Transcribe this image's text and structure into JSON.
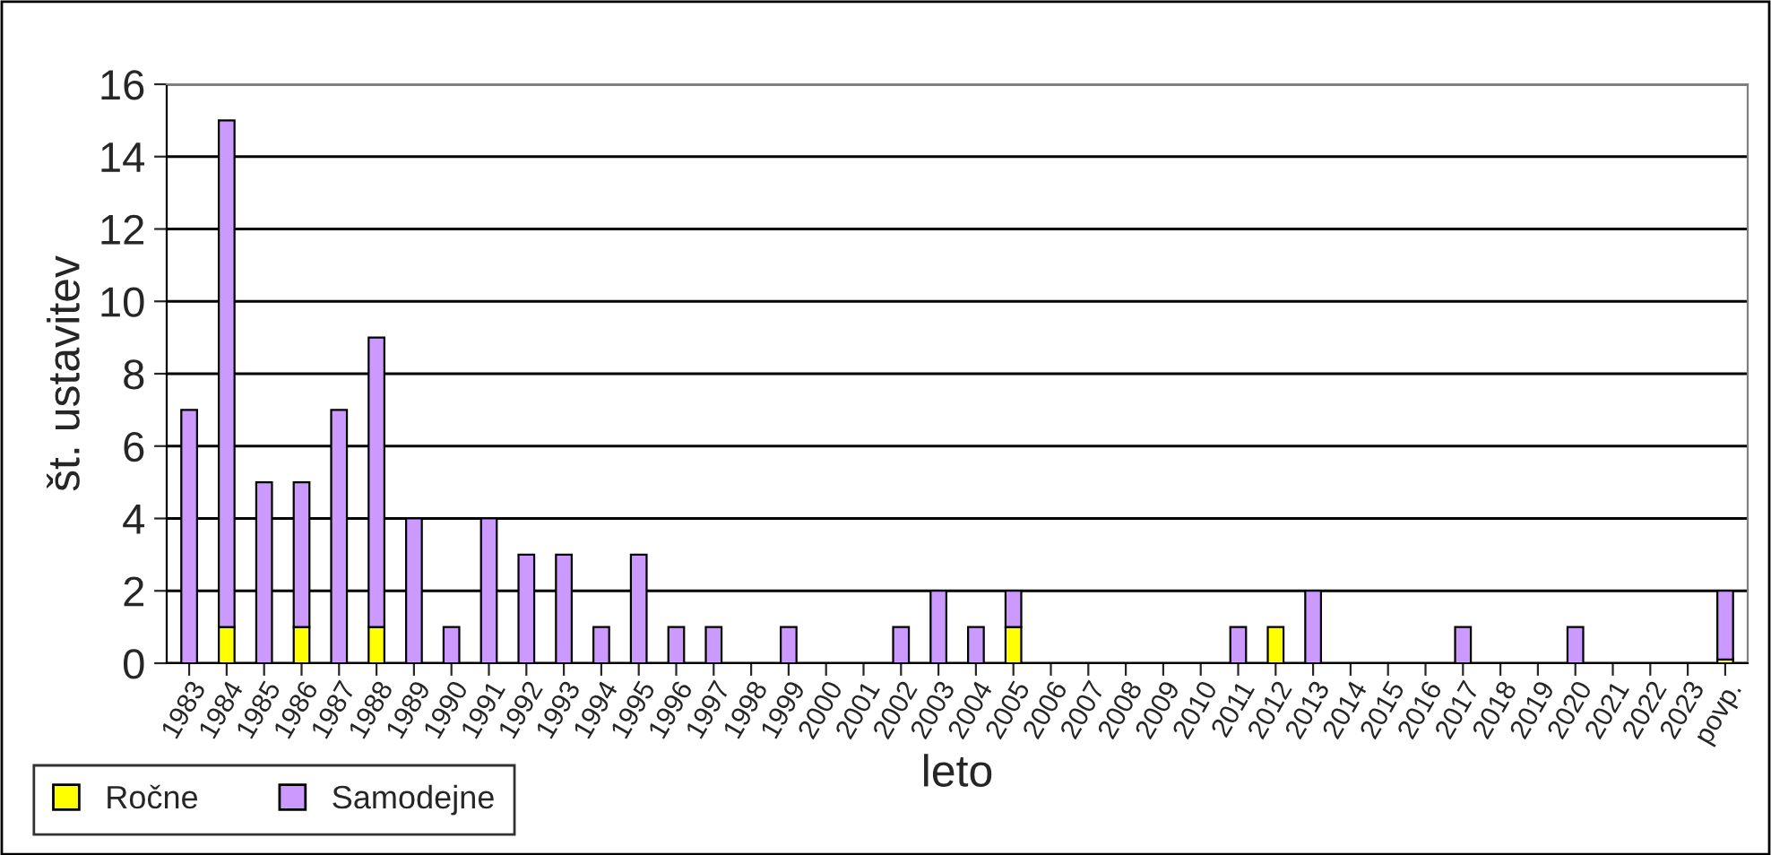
{
  "chart_data": {
    "type": "bar",
    "stacked": true,
    "xlabel": "leto",
    "ylabel": "št. ustavitev",
    "categories": [
      "1983",
      "1984",
      "1985",
      "1986",
      "1987",
      "1988",
      "1989",
      "1990",
      "1991",
      "1992",
      "1993",
      "1994",
      "1995",
      "1996",
      "1997",
      "1998",
      "1999",
      "2000",
      "2001",
      "2002",
      "2003",
      "2004",
      "2005",
      "2006",
      "2007",
      "2008",
      "2009",
      "2010",
      "2011",
      "2012",
      "2013",
      "2014",
      "2015",
      "2016",
      "2017",
      "2018",
      "2019",
      "2020",
      "2021",
      "2022",
      "2023",
      "povp."
    ],
    "series": [
      {
        "name": "Ročne",
        "color": "#ffff00",
        "values": [
          0,
          1,
          0,
          1,
          0,
          1,
          0,
          0,
          0,
          0,
          0,
          0,
          0,
          0,
          0,
          0,
          0,
          0,
          0,
          0,
          0,
          0,
          1,
          0,
          0,
          0,
          0,
          0,
          0,
          1,
          0,
          0,
          0,
          0,
          0,
          0,
          0,
          0,
          0,
          0,
          0,
          0.1
        ]
      },
      {
        "name": "Samodejne",
        "color": "#cc99ff",
        "values": [
          7,
          14,
          5,
          4,
          7,
          8,
          4,
          1,
          4,
          3,
          3,
          1,
          3,
          1,
          1,
          0,
          1,
          0,
          0,
          1,
          2,
          1,
          1,
          0,
          0,
          0,
          0,
          0,
          1,
          0,
          2,
          0,
          0,
          0,
          1,
          0,
          0,
          1,
          0,
          0,
          0,
          1.9
        ]
      }
    ],
    "ylim": [
      0,
      16
    ],
    "yticks": [
      0,
      2,
      4,
      6,
      8,
      10,
      12,
      14,
      16
    ],
    "grid": "y",
    "legend": "bottom left"
  }
}
